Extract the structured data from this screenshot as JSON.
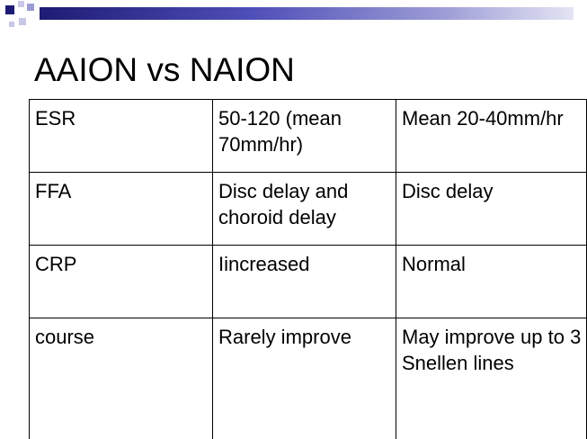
{
  "slide": {
    "title": "AAION vs NAION",
    "accent_colors": {
      "navy": "#1d1b73",
      "blue": "#4f4fb8",
      "light_blue": "#9b9bd6",
      "pale": "#c7c7e6"
    }
  },
  "table": {
    "rows": [
      {
        "label": "ESR",
        "aaion": "50-120 (mean 70mm/hr)",
        "naion": "Mean 20-40mm/hr"
      },
      {
        "label": "FFA",
        "aaion": "Disc delay and choroid delay",
        "naion": "Disc delay"
      },
      {
        "label": "CRP",
        "aaion": "Iincreased",
        "naion": "Normal"
      },
      {
        "label": "course",
        "aaion": "Rarely improve",
        "naion": "May improve up to 3 Snellen lines"
      }
    ]
  }
}
